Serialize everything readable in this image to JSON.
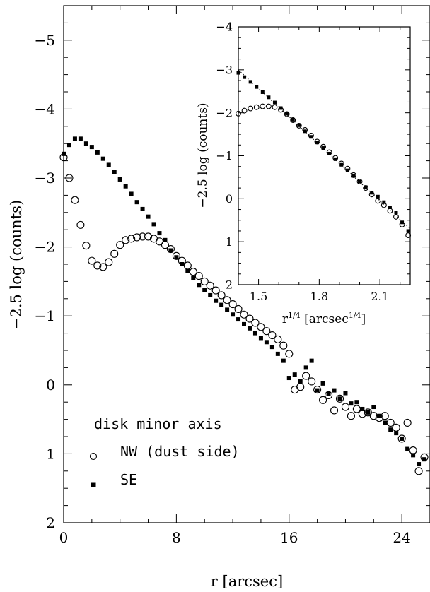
{
  "chart_data": [
    {
      "type": "scatter",
      "xlabel": "r [arcsec]",
      "ylabel": "−2.5 log (counts)",
      "xlim": [
        0,
        26
      ],
      "ylim": [
        2,
        -5.5
      ],
      "y_inverted": true,
      "x_ticks": [
        "0",
        "8",
        "16",
        "24"
      ],
      "y_ticks": [
        "−5",
        "−4",
        "−3",
        "−2",
        "−1",
        "0",
        "1",
        "2"
      ],
      "legend_title": "disk minor axis",
      "legend_placement": "bottom-left",
      "series": [
        {
          "name": "NW (dust side)",
          "marker": "open-circle",
          "x": [
            0.0,
            0.4,
            0.8,
            1.2,
            1.6,
            2.0,
            2.4,
            2.8,
            3.2,
            3.6,
            4.0,
            4.4,
            4.8,
            5.2,
            5.6,
            6.0,
            6.4,
            6.8,
            7.2,
            7.6,
            8.0,
            8.4,
            8.8,
            9.2,
            9.6,
            10.0,
            10.4,
            10.8,
            11.2,
            11.6,
            12.0,
            12.4,
            12.8,
            13.2,
            13.6,
            14.0,
            14.4,
            14.8,
            15.2,
            15.6,
            16.0,
            16.4,
            16.8,
            17.2,
            17.6,
            18.0,
            18.4,
            18.8,
            19.2,
            19.6,
            20.0,
            20.4,
            20.8,
            21.2,
            21.6,
            22.0,
            22.4,
            22.8,
            23.2,
            23.6,
            24.0,
            24.4,
            24.8,
            25.2,
            25.6
          ],
          "y": [
            -3.3,
            -3.0,
            -2.68,
            -2.32,
            -2.02,
            -1.8,
            -1.73,
            -1.71,
            -1.78,
            -1.9,
            -2.03,
            -2.1,
            -2.12,
            -2.14,
            -2.15,
            -2.15,
            -2.12,
            -2.08,
            -2.03,
            -1.97,
            -1.87,
            -1.8,
            -1.73,
            -1.64,
            -1.58,
            -1.5,
            -1.44,
            -1.37,
            -1.3,
            -1.23,
            -1.17,
            -1.1,
            -1.02,
            -0.96,
            -0.9,
            -0.84,
            -0.78,
            -0.72,
            -0.66,
            -0.57,
            -0.45,
            0.07,
            0.03,
            -0.13,
            -0.05,
            0.07,
            0.22,
            0.15,
            0.37,
            0.2,
            0.32,
            0.45,
            0.35,
            0.42,
            0.4,
            0.45,
            0.48,
            0.45,
            0.55,
            0.62,
            0.78,
            0.55,
            0.95,
            1.25,
            1.05
          ]
        },
        {
          "name": "SE",
          "marker": "filled-square",
          "x": [
            0.0,
            0.4,
            0.8,
            1.2,
            1.6,
            2.0,
            2.4,
            2.8,
            3.2,
            3.6,
            4.0,
            4.4,
            4.8,
            5.2,
            5.6,
            6.0,
            6.4,
            6.8,
            7.2,
            7.6,
            8.0,
            8.4,
            8.8,
            9.2,
            9.6,
            10.0,
            10.4,
            10.8,
            11.2,
            11.6,
            12.0,
            12.4,
            12.8,
            13.2,
            13.6,
            14.0,
            14.4,
            14.8,
            15.2,
            15.6,
            16.0,
            16.4,
            16.8,
            17.2,
            17.6,
            18.0,
            18.4,
            18.8,
            19.2,
            19.6,
            20.0,
            20.4,
            20.8,
            21.2,
            21.6,
            22.0,
            22.4,
            22.8,
            23.2,
            23.6,
            24.0,
            24.4,
            24.8,
            25.2,
            25.6
          ],
          "y": [
            -3.35,
            -3.48,
            -3.57,
            -3.57,
            -3.5,
            -3.45,
            -3.37,
            -3.28,
            -3.19,
            -3.09,
            -2.98,
            -2.88,
            -2.77,
            -2.65,
            -2.55,
            -2.44,
            -2.33,
            -2.2,
            -2.1,
            -1.95,
            -1.85,
            -1.75,
            -1.65,
            -1.55,
            -1.45,
            -1.38,
            -1.3,
            -1.22,
            -1.16,
            -1.09,
            -1.02,
            -0.95,
            -0.88,
            -0.82,
            -0.75,
            -0.68,
            -0.62,
            -0.55,
            -0.45,
            -0.35,
            -0.1,
            -0.15,
            -0.05,
            -0.25,
            -0.35,
            0.08,
            -0.02,
            0.13,
            0.08,
            0.2,
            0.12,
            0.27,
            0.25,
            0.35,
            0.4,
            0.32,
            0.45,
            0.55,
            0.65,
            0.7,
            0.78,
            0.93,
            1.02,
            1.15,
            1.08
          ]
        }
      ]
    },
    {
      "type": "scatter",
      "inset": true,
      "xlabel": "r^{1/4} [arcsec^{1/4}]",
      "ylabel": "−2.5 log (counts)",
      "xlabel_parts": {
        "r": "r",
        "sup1": "1/4",
        "mid": " [arcsec",
        "sup2": "1/4",
        "end": "]"
      },
      "xlim": [
        1.4,
        2.25
      ],
      "ylim": [
        2,
        -4
      ],
      "y_inverted": true,
      "x_ticks": [
        "1.5",
        "1.8",
        "2.1"
      ],
      "y_ticks": [
        "−4",
        "−3",
        "−2",
        "−1",
        "0",
        "1",
        "2"
      ],
      "fit_line": {
        "style": "dotted",
        "x": [
          1.4,
          2.25
        ],
        "y": [
          -3.0,
          0.7
        ]
      },
      "series": [
        {
          "name": "NW (dust side)",
          "marker": "open-circle",
          "x": [
            1.4,
            1.43,
            1.46,
            1.49,
            1.52,
            1.55,
            1.58,
            1.61,
            1.64,
            1.67,
            1.7,
            1.73,
            1.76,
            1.79,
            1.82,
            1.85,
            1.88,
            1.91,
            1.94,
            1.97,
            2.0,
            2.03,
            2.06,
            2.09,
            2.12,
            2.15,
            2.18,
            2.21,
            2.24
          ],
          "y": [
            -1.98,
            -2.05,
            -2.1,
            -2.13,
            -2.15,
            -2.15,
            -2.13,
            -2.07,
            -1.97,
            -1.83,
            -1.7,
            -1.6,
            -1.47,
            -1.33,
            -1.21,
            -1.08,
            -0.95,
            -0.82,
            -0.7,
            -0.55,
            -0.4,
            -0.25,
            -0.1,
            0.05,
            0.15,
            0.28,
            0.42,
            0.6,
            0.85
          ]
        },
        {
          "name": "SE",
          "marker": "filled-square",
          "x": [
            1.4,
            1.43,
            1.46,
            1.49,
            1.52,
            1.55,
            1.58,
            1.61,
            1.64,
            1.67,
            1.7,
            1.73,
            1.76,
            1.79,
            1.82,
            1.85,
            1.88,
            1.91,
            1.94,
            1.97,
            2.0,
            2.03,
            2.06,
            2.09,
            2.12,
            2.15,
            2.18,
            2.21,
            2.24
          ],
          "y": [
            -2.93,
            -2.83,
            -2.72,
            -2.6,
            -2.48,
            -2.36,
            -2.24,
            -2.11,
            -1.98,
            -1.84,
            -1.71,
            -1.57,
            -1.44,
            -1.31,
            -1.18,
            -1.05,
            -0.92,
            -0.79,
            -0.66,
            -0.53,
            -0.4,
            -0.27,
            -0.14,
            -0.05,
            0.08,
            0.2,
            0.32,
            0.55,
            0.75
          ]
        }
      ]
    }
  ]
}
